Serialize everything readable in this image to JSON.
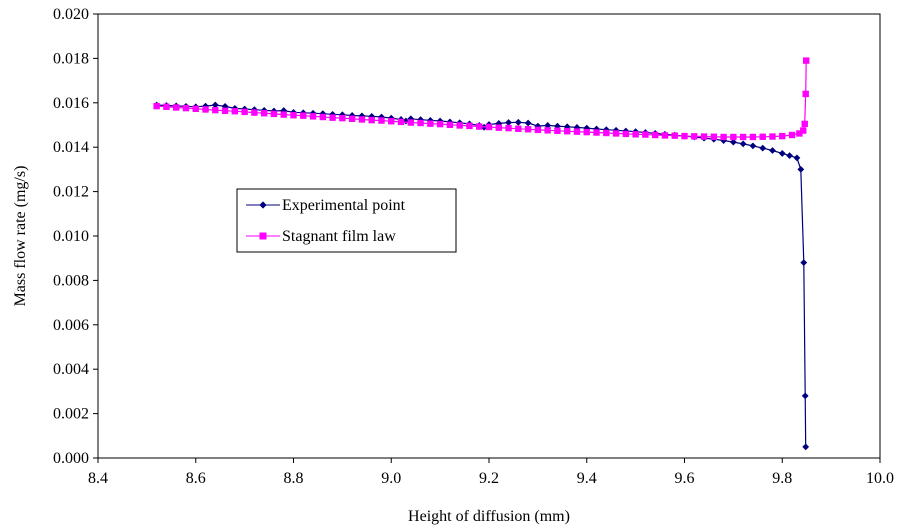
{
  "chart_data": {
    "type": "scatter",
    "title": "",
    "xlabel": "Height of diffusion (mm)",
    "ylabel": "Mass flow rate (mg/s)",
    "xlim": [
      8.4,
      10.0
    ],
    "ylim": [
      0.0,
      0.02
    ],
    "x_ticks": [
      "8.4",
      "8.6",
      "8.8",
      "9.0",
      "9.2",
      "9.4",
      "9.6",
      "9.8",
      "10.0"
    ],
    "y_ticks": [
      "0.000",
      "0.002",
      "0.004",
      "0.006",
      "0.008",
      "0.010",
      "0.012",
      "0.014",
      "0.016",
      "0.018",
      "0.020"
    ],
    "grid": false,
    "legend_position": "center-left",
    "series": [
      {
        "name": "Experimental point",
        "color": "#00007F",
        "marker": "diamond",
        "points": [
          [
            8.52,
            0.0159
          ],
          [
            8.54,
            0.01588
          ],
          [
            8.56,
            0.01586
          ],
          [
            8.58,
            0.01584
          ],
          [
            8.6,
            0.01582
          ],
          [
            8.62,
            0.01585
          ],
          [
            8.64,
            0.0159
          ],
          [
            8.66,
            0.01584
          ],
          [
            8.68,
            0.01575
          ],
          [
            8.7,
            0.01572
          ],
          [
            8.72,
            0.01569
          ],
          [
            8.74,
            0.01566
          ],
          [
            8.76,
            0.01563
          ],
          [
            8.78,
            0.01565
          ],
          [
            8.8,
            0.01557
          ],
          [
            8.82,
            0.01555
          ],
          [
            8.84,
            0.01553
          ],
          [
            8.86,
            0.01551
          ],
          [
            8.88,
            0.01548
          ],
          [
            8.9,
            0.01546
          ],
          [
            8.92,
            0.01543
          ],
          [
            8.94,
            0.01541
          ],
          [
            8.96,
            0.01539
          ],
          [
            8.98,
            0.01536
          ],
          [
            9.0,
            0.01531
          ],
          [
            9.02,
            0.01525
          ],
          [
            9.03,
            0.01518
          ],
          [
            9.04,
            0.01528
          ],
          [
            9.06,
            0.01524
          ],
          [
            9.08,
            0.01521
          ],
          [
            9.1,
            0.01518
          ],
          [
            9.12,
            0.01514
          ],
          [
            9.14,
            0.0151
          ],
          [
            9.16,
            0.01505
          ],
          [
            9.18,
            0.01498
          ],
          [
            9.19,
            0.0149
          ],
          [
            9.2,
            0.01502
          ],
          [
            9.22,
            0.01507
          ],
          [
            9.24,
            0.01511
          ],
          [
            9.26,
            0.01512
          ],
          [
            9.28,
            0.01509
          ],
          [
            9.3,
            0.01495
          ],
          [
            9.32,
            0.01498
          ],
          [
            9.34,
            0.01495
          ],
          [
            9.36,
            0.01492
          ],
          [
            9.38,
            0.01489
          ],
          [
            9.4,
            0.01486
          ],
          [
            9.42,
            0.01482
          ],
          [
            9.44,
            0.01479
          ],
          [
            9.46,
            0.01476
          ],
          [
            9.48,
            0.01473
          ],
          [
            9.5,
            0.0147
          ],
          [
            9.52,
            0.01466
          ],
          [
            9.54,
            0.01462
          ],
          [
            9.56,
            0.01458
          ],
          [
            9.58,
            0.01454
          ],
          [
            9.6,
            0.0145
          ],
          [
            9.62,
            0.01446
          ],
          [
            9.64,
            0.01441
          ],
          [
            9.66,
            0.01436
          ],
          [
            9.68,
            0.0143
          ],
          [
            9.7,
            0.01423
          ],
          [
            9.72,
            0.01415
          ],
          [
            9.74,
            0.01406
          ],
          [
            9.76,
            0.01396
          ],
          [
            9.78,
            0.01385
          ],
          [
            9.8,
            0.01372
          ],
          [
            9.815,
            0.01362
          ],
          [
            9.83,
            0.01352
          ],
          [
            9.838,
            0.013
          ],
          [
            9.844,
            0.0088
          ],
          [
            9.847,
            0.0028
          ],
          [
            9.848,
            0.0005
          ]
        ]
      },
      {
        "name": "Stagnant film law",
        "color": "#FF00FF",
        "marker": "square",
        "points": [
          [
            8.52,
            0.01585
          ],
          [
            8.54,
            0.01582
          ],
          [
            8.56,
            0.01579
          ],
          [
            8.58,
            0.01576
          ],
          [
            8.6,
            0.01573
          ],
          [
            8.62,
            0.0157
          ],
          [
            8.64,
            0.01567
          ],
          [
            8.66,
            0.01564
          ],
          [
            8.68,
            0.01562
          ],
          [
            8.7,
            0.01559
          ],
          [
            8.72,
            0.01556
          ],
          [
            8.74,
            0.01553
          ],
          [
            8.76,
            0.0155
          ],
          [
            8.78,
            0.01547
          ],
          [
            8.8,
            0.01544
          ],
          [
            8.82,
            0.01542
          ],
          [
            8.84,
            0.01539
          ],
          [
            8.86,
            0.01536
          ],
          [
            8.88,
            0.01533
          ],
          [
            8.9,
            0.01531
          ],
          [
            8.92,
            0.01528
          ],
          [
            8.94,
            0.01525
          ],
          [
            8.96,
            0.01522
          ],
          [
            8.98,
            0.0152
          ],
          [
            9.0,
            0.01517
          ],
          [
            9.02,
            0.01514
          ],
          [
            9.04,
            0.01511
          ],
          [
            9.06,
            0.01509
          ],
          [
            9.08,
            0.01506
          ],
          [
            9.1,
            0.01504
          ],
          [
            9.12,
            0.01501
          ],
          [
            9.14,
            0.01498
          ],
          [
            9.16,
            0.01496
          ],
          [
            9.18,
            0.01493
          ],
          [
            9.2,
            0.01491
          ],
          [
            9.22,
            0.01488
          ],
          [
            9.24,
            0.01486
          ],
          [
            9.26,
            0.01483
          ],
          [
            9.28,
            0.01481
          ],
          [
            9.3,
            0.01478
          ],
          [
            9.32,
            0.01476
          ],
          [
            9.34,
            0.01474
          ],
          [
            9.36,
            0.01472
          ],
          [
            9.38,
            0.0147
          ],
          [
            9.4,
            0.01468
          ],
          [
            9.42,
            0.01466
          ],
          [
            9.44,
            0.01464
          ],
          [
            9.46,
            0.01462
          ],
          [
            9.48,
            0.0146
          ],
          [
            9.5,
            0.01458
          ],
          [
            9.52,
            0.01457
          ],
          [
            9.54,
            0.01455
          ],
          [
            9.56,
            0.01453
          ],
          [
            9.58,
            0.01452
          ],
          [
            9.6,
            0.0145
          ],
          [
            9.62,
            0.01449
          ],
          [
            9.64,
            0.01448
          ],
          [
            9.66,
            0.01447
          ],
          [
            9.68,
            0.01446
          ],
          [
            9.7,
            0.01446
          ],
          [
            9.72,
            0.01446
          ],
          [
            9.74,
            0.01446
          ],
          [
            9.76,
            0.01447
          ],
          [
            9.78,
            0.01448
          ],
          [
            9.8,
            0.0145
          ],
          [
            9.82,
            0.01455
          ],
          [
            9.835,
            0.01462
          ],
          [
            9.843,
            0.01475
          ],
          [
            9.846,
            0.01505
          ],
          [
            9.848,
            0.0164
          ],
          [
            9.849,
            0.0179
          ]
        ]
      }
    ]
  }
}
